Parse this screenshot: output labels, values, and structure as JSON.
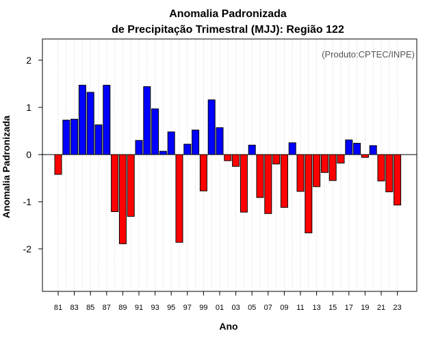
{
  "chart_data": {
    "type": "bar",
    "title_line1": "Anomalia Padronizada",
    "title_line2": "de Precipitação Trimestral (MJJ): Região 122",
    "credit": "(Produto:CPTEC/INPE)",
    "xlabel": "Ano",
    "ylabel": "Anomalia Padronizada",
    "ylim": [
      -2.9,
      2.45
    ],
    "yticks": [
      -2,
      -1,
      0,
      1,
      2
    ],
    "ytick_labels": [
      "-2",
      "-1",
      "0",
      "1",
      "2"
    ],
    "categories": [
      "81",
      "82",
      "83",
      "84",
      "85",
      "86",
      "87",
      "88",
      "89",
      "90",
      "91",
      "92",
      "93",
      "94",
      "95",
      "96",
      "97",
      "98",
      "99",
      "00",
      "01",
      "02",
      "03",
      "04",
      "05",
      "06",
      "07",
      "08",
      "09",
      "10",
      "11",
      "12",
      "13",
      "14",
      "15",
      "16",
      "17",
      "18",
      "19",
      "20",
      "21",
      "22",
      "23"
    ],
    "xtick_labels": [
      "81",
      "83",
      "85",
      "87",
      "89",
      "91",
      "93",
      "95",
      "97",
      "99",
      "01",
      "03",
      "05",
      "07",
      "09",
      "11",
      "13",
      "15",
      "17",
      "19",
      "21",
      "23"
    ],
    "values": [
      -0.42,
      0.73,
      0.75,
      1.47,
      1.32,
      0.63,
      1.47,
      -1.21,
      -1.89,
      -1.31,
      0.3,
      1.44,
      0.97,
      0.07,
      0.48,
      -1.86,
      0.22,
      0.52,
      -0.77,
      1.16,
      0.57,
      -0.13,
      -0.25,
      -1.22,
      0.2,
      -0.91,
      -1.25,
      -0.2,
      -1.12,
      0.25,
      -0.78,
      -1.66,
      -0.68,
      -0.38,
      -0.55,
      -0.18,
      0.31,
      0.24,
      -0.06,
      0.19,
      -0.56,
      -0.79,
      -1.07
    ],
    "positive_color": "#0000ff",
    "negative_color": "#ff0000",
    "grid": true
  }
}
